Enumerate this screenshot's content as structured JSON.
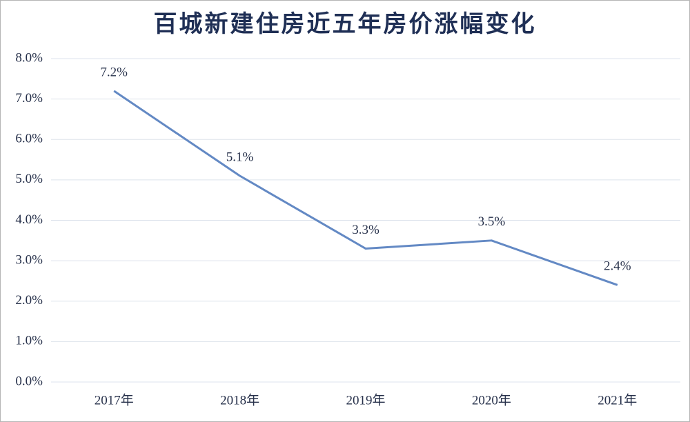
{
  "chart_data": {
    "type": "line",
    "title": "百城新建住房近五年房价涨幅变化",
    "categories": [
      "2017年",
      "2018年",
      "2019年",
      "2020年",
      "2021年"
    ],
    "values": [
      7.2,
      5.1,
      3.3,
      3.5,
      2.4
    ],
    "value_labels": [
      "7.2%",
      "5.1%",
      "3.3%",
      "3.5%",
      "2.4%"
    ],
    "color": "#6389c4",
    "ylim": [
      0,
      8
    ],
    "yticks": [
      {
        "value": 0,
        "label": "0.0%"
      },
      {
        "value": 1,
        "label": "1.0%"
      },
      {
        "value": 2,
        "label": "2.0%"
      },
      {
        "value": 3,
        "label": "3.0%"
      },
      {
        "value": 4,
        "label": "4.0%"
      },
      {
        "value": 5,
        "label": "5.0%"
      },
      {
        "value": 6,
        "label": "6.0%"
      },
      {
        "value": 7,
        "label": "7.0%"
      },
      {
        "value": 8,
        "label": "8.0%"
      }
    ],
    "grid": true
  }
}
